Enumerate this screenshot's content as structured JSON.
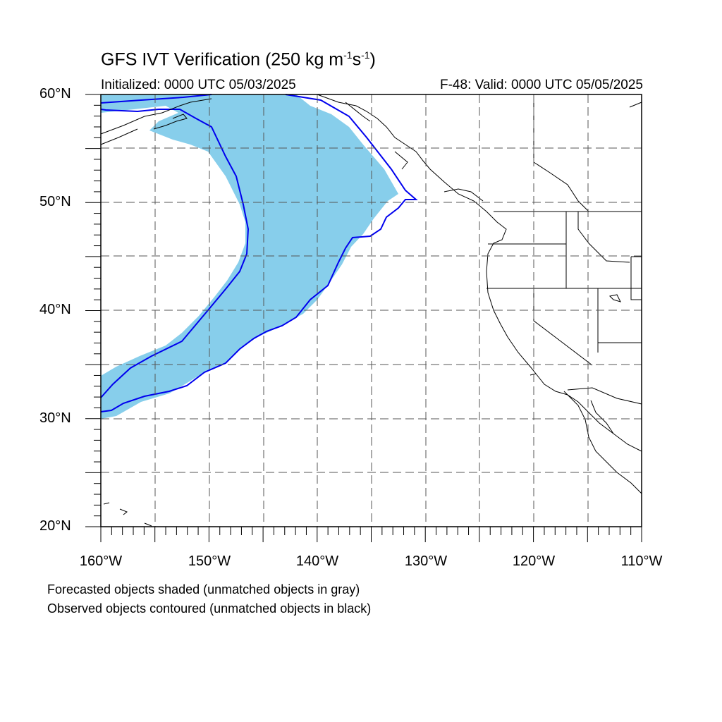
{
  "title_prefix": "GFS IVT Verification (250 kg m",
  "title_exp1": "-1",
  "title_mid": "s",
  "title_exp2": "-1",
  "title_suffix": ")",
  "initialized": "Initialized: 0000 UTC 05/03/2025",
  "valid": "F-48: Valid: 0000 UTC 05/05/2025",
  "lat_labels": [
    "60°N",
    "50°N",
    "40°N",
    "30°N",
    "20°N"
  ],
  "lon_labels": [
    "160°W",
    "150°W",
    "140°W",
    "130°W",
    "120°W",
    "110°W"
  ],
  "notes": {
    "line1": "Forecasted objects shaded (unmatched objects in gray)",
    "line2": "Observed objects contoured (unmatched objects in black)"
  },
  "colors": {
    "forecast_fill": "#87ceeb",
    "observed_contour": "#0000ee",
    "coastline": "#000000",
    "grid": "#555555"
  },
  "map_extent": {
    "lon_min": -160,
    "lon_max": -110,
    "lat_min": 20,
    "lat_max": 60
  }
}
